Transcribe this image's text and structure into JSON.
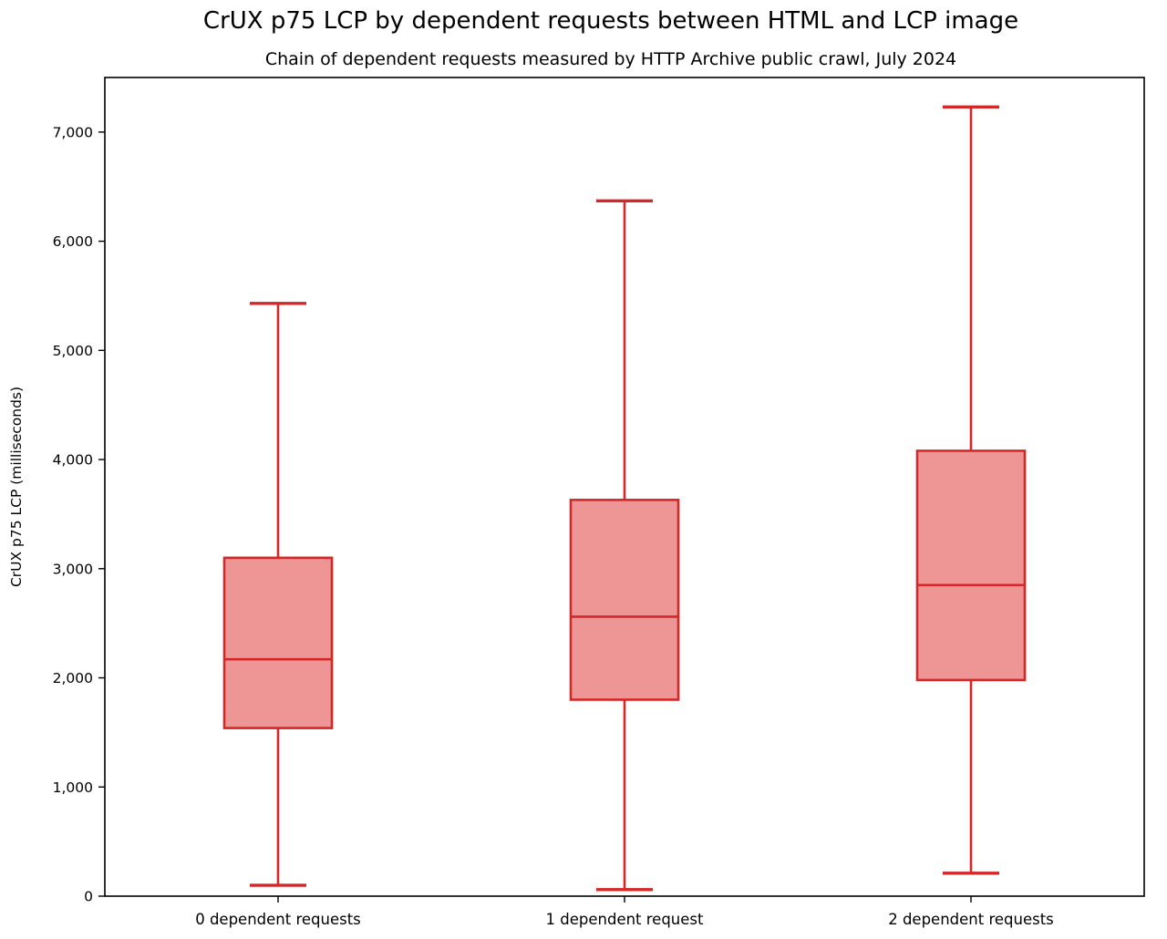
{
  "chart_data": {
    "type": "boxplot",
    "title": "CrUX p75 LCP by dependent requests between HTML and LCP image",
    "subtitle": "Chain of dependent requests measured by HTTP Archive public crawl, July 2024",
    "ylabel": "CrUX p75 LCP (milliseconds)",
    "xlabel": "",
    "ylim": [
      0,
      7500
    ],
    "grid": false,
    "legend": "none",
    "yticks": [
      {
        "value": 0,
        "label": "0"
      },
      {
        "value": 1000,
        "label": "1,000"
      },
      {
        "value": 2000,
        "label": "2,000"
      },
      {
        "value": 3000,
        "label": "3,000"
      },
      {
        "value": 4000,
        "label": "4,000"
      },
      {
        "value": 5000,
        "label": "5,000"
      },
      {
        "value": 6000,
        "label": "6,000"
      },
      {
        "value": 7000,
        "label": "7,000"
      }
    ],
    "categories": [
      "0 dependent requests",
      "1 dependent request",
      "2 dependent requests"
    ],
    "series": [
      {
        "category": "0 dependent requests",
        "whisker_low": 100,
        "q1": 1540,
        "median": 2170,
        "q3": 3100,
        "whisker_high": 5430
      },
      {
        "category": "1 dependent request",
        "whisker_low": 60,
        "q1": 1800,
        "median": 2560,
        "q3": 3630,
        "whisker_high": 6370
      },
      {
        "category": "2 dependent requests",
        "whisker_low": 210,
        "q1": 1980,
        "median": 2850,
        "q3": 4080,
        "whisker_high": 7230
      }
    ],
    "colors": {
      "box_edge": "#d62728",
      "box_fill": "#ee9596",
      "axis": "#000000"
    }
  }
}
